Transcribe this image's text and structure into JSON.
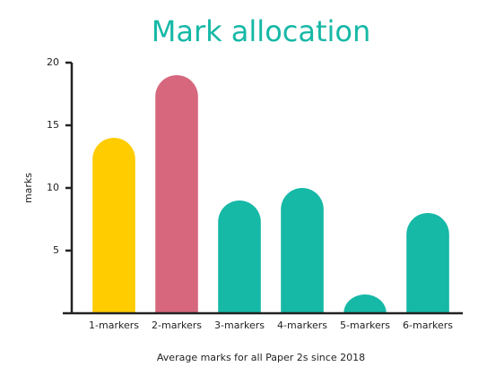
{
  "chart_data": {
    "type": "bar",
    "title": "Mark allocation",
    "x_label": "Average marks for all Paper 2s since 2018",
    "y_label": "marks",
    "categories": [
      "1-markers",
      "2-markers",
      "3-markers",
      "4-markers",
      "5-markers",
      "6-markers"
    ],
    "values": [
      14,
      19,
      9,
      10,
      1.5,
      8
    ],
    "colors": [
      "#ffcc00",
      "#d6677d",
      "#16b8a6",
      "#16b8a6",
      "#16b8a6",
      "#16b8a6"
    ],
    "ylim": [
      0,
      20
    ],
    "yticks": [
      5,
      10,
      15,
      20
    ],
    "grid": false
  }
}
